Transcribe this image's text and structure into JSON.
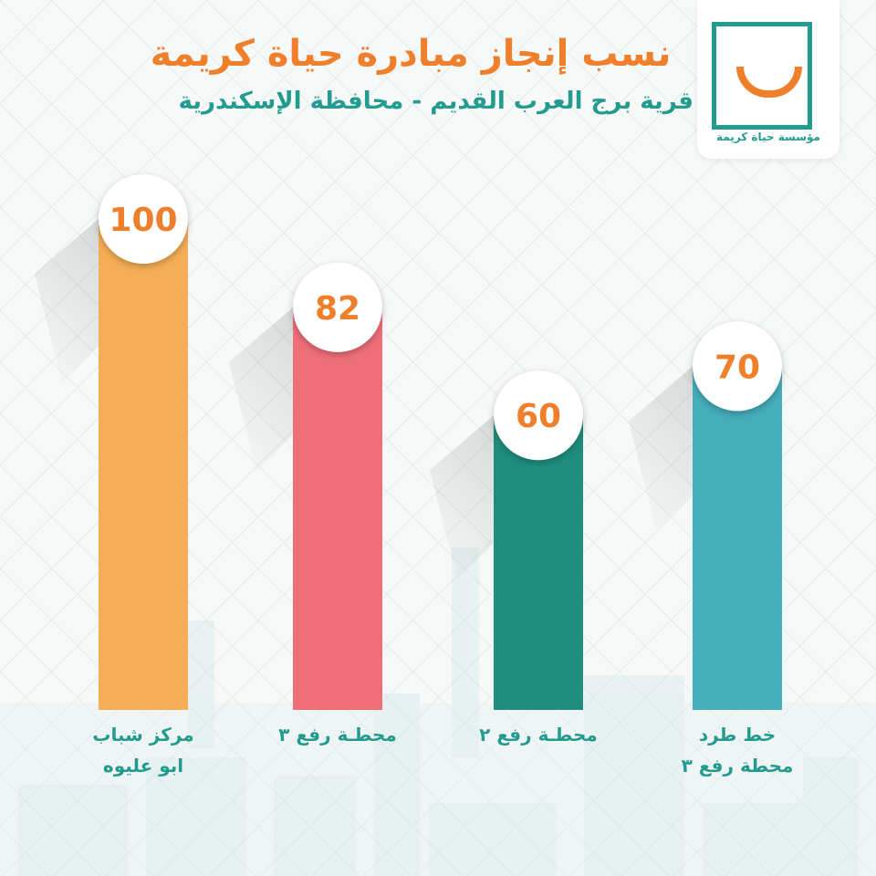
{
  "header": {
    "title": "نسب إنجاز مبادرة حياة كريمة",
    "subtitle": "قرية برج العرب القديم -  محافظة الإسكندرية"
  },
  "logo": {
    "icon": "smile-frame-logo",
    "text": "مؤسسة حياة كريمة",
    "colors": {
      "frame": "#239c8f",
      "smile": "#f07f2c"
    }
  },
  "chart_data": {
    "type": "bar",
    "categories": [
      "مركز شباب\nابو عليوه",
      "محطـة رفع ٣",
      "محطـة رفع ٢",
      "خط طرد\nمحطة رفع ٣"
    ],
    "values": [
      100,
      82,
      60,
      70
    ],
    "value_labels": [
      "100",
      "82",
      "60",
      "70"
    ],
    "colors": [
      "#f5ae55",
      "#ef6f79",
      "#1f8e7f",
      "#44aeb9"
    ],
    "ylim": [
      0,
      100
    ],
    "grid": false,
    "label_color": "#f07f2c"
  }
}
